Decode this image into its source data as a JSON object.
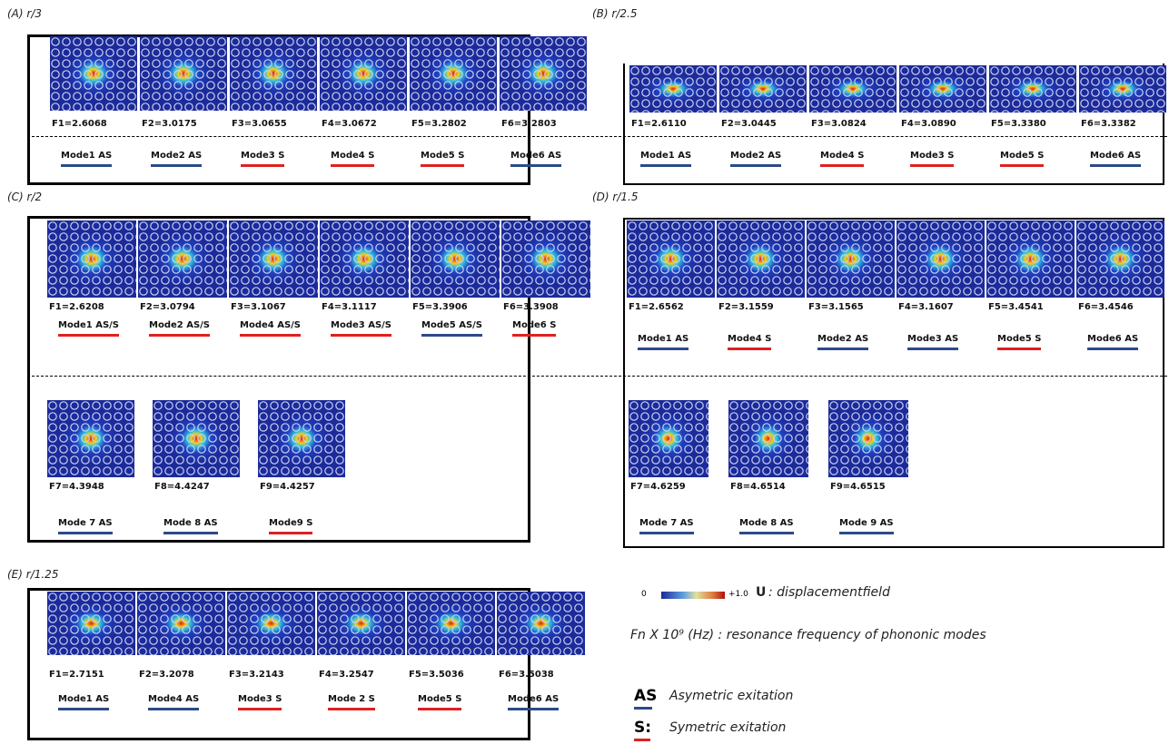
{
  "panels": [
    {
      "label": "(A) r/3",
      "rows": [
        {
          "frequencies": [
            "F1=2.6068",
            "F2=3.0175",
            "F3=3.0655",
            "F4=3.0672",
            "F5=3.2802",
            "F6=3.2803"
          ],
          "modes": [
            {
              "text": "Mode1 AS",
              "color": "#2b4a8a"
            },
            {
              "text": "Mode2 AS",
              "color": "#2b4a8a"
            },
            {
              "text": "Mode3 S",
              "color": "#e02020"
            },
            {
              "text": "Mode4 S",
              "color": "#e02020"
            },
            {
              "text": "Mode5 S",
              "color": "#e02020"
            },
            {
              "text": "Mode6 AS",
              "color": "#2b4a8a"
            }
          ]
        }
      ]
    },
    {
      "label": "(B) r/2.5",
      "rows": [
        {
          "frequencies": [
            "F1=2.6110",
            "F2=3.0445",
            "F3=3.0824",
            "F4=3.0890",
            "F5=3.3380",
            "F6=3.3382"
          ],
          "modes": [
            {
              "text": "Mode1 AS",
              "color": "#2b4a8a"
            },
            {
              "text": "Mode2 AS",
              "color": "#2b4a8a"
            },
            {
              "text": "Mode4 S",
              "color": "#e02020"
            },
            {
              "text": "Mode3 S",
              "color": "#e02020"
            },
            {
              "text": "Mode5 S",
              "color": "#e02020"
            },
            {
              "text": "Mode6 AS",
              "color": "#2b4a8a"
            }
          ]
        }
      ]
    },
    {
      "label": "(C) r/2",
      "rows": [
        {
          "frequencies": [
            "F1=2.6208",
            "F2=3.0794",
            "F3=3.1067",
            "F4=3.1117",
            "F5=3.3906",
            "F6=3.3908"
          ],
          "modes": [
            {
              "text": "Mode1 AS/S",
              "color": "#e02020"
            },
            {
              "text": "Mode2 AS/S",
              "color": "#e02020"
            },
            {
              "text": "Mode4 AS/S",
              "color": "#e02020"
            },
            {
              "text": "Mode3 AS/S",
              "color": "#e02020"
            },
            {
              "text": "Mode5 AS/S",
              "color": "#2b4a8a"
            },
            {
              "text": "Mode6 S",
              "color": "#e02020"
            }
          ]
        },
        {
          "frequencies": [
            "F7=4.3948",
            "F8=4.4247",
            "F9=4.4257"
          ],
          "modes": [
            {
              "text": "Mode 7 AS",
              "color": "#2b4a8a"
            },
            {
              "text": "Mode 8 AS",
              "color": "#2b4a8a"
            },
            {
              "text": "Mode9 S",
              "color": "#e02020"
            }
          ]
        }
      ]
    },
    {
      "label": "(D) r/1.5",
      "rows": [
        {
          "frequencies": [
            "F1=2.6562",
            "F2=3.1559",
            "F3=3.1565",
            "F4=3.1607",
            "F5=3.4541",
            "F6=3.4546"
          ],
          "modes": [
            {
              "text": "Mode1 AS",
              "color": "#2b4a8a"
            },
            {
              "text": "Mode4 S",
              "color": "#e02020"
            },
            {
              "text": "Mode2 AS",
              "color": "#2b4a8a"
            },
            {
              "text": "Mode3 AS",
              "color": "#2b4a8a"
            },
            {
              "text": "Mode5 S",
              "color": "#e02020"
            },
            {
              "text": "Mode6 AS",
              "color": "#2b4a8a"
            }
          ]
        },
        {
          "frequencies": [
            "F7=4.6259",
            "F8=4.6514",
            "F9=4.6515"
          ],
          "modes": [
            {
              "text": "Mode 7 AS",
              "color": "#2b4a8a"
            },
            {
              "text": "Mode 8 AS",
              "color": "#2b4a8a"
            },
            {
              "text": "Mode 9 AS",
              "color": "#2b4a8a"
            }
          ]
        }
      ]
    },
    {
      "label": "(E) r/1.25",
      "rows": [
        {
          "frequencies": [
            "F1=2.7151",
            "F2=3.2078",
            "F3=3.2143",
            "F4=3.2547",
            "F5=3.5036",
            "F6=3.5038"
          ],
          "modes": [
            {
              "text": "Mode1 AS",
              "color": "#2b4a8a"
            },
            {
              "text": "Mode4 AS",
              "color": "#2b4a8a"
            },
            {
              "text": "Mode3 S",
              "color": "#e02020"
            },
            {
              "text": "Mode 2 S",
              "color": "#e02020"
            },
            {
              "text": "Mode5 S",
              "color": "#e02020"
            },
            {
              "text": "Mode6 AS",
              "color": "#2b4a8a"
            }
          ]
        }
      ]
    }
  ],
  "legend": {
    "colorbar_min": "0",
    "colorbar_max": "+1.0",
    "field_symbol": "U",
    "field_text": ": displacementfield",
    "frequency_note": "Fn X 10⁹ (Hz) : resonance frequency of phononic modes",
    "as_symbol": "AS",
    "as_text": "Asymetric exitation",
    "s_symbol": "S:",
    "s_text": "Symetric exitation"
  }
}
